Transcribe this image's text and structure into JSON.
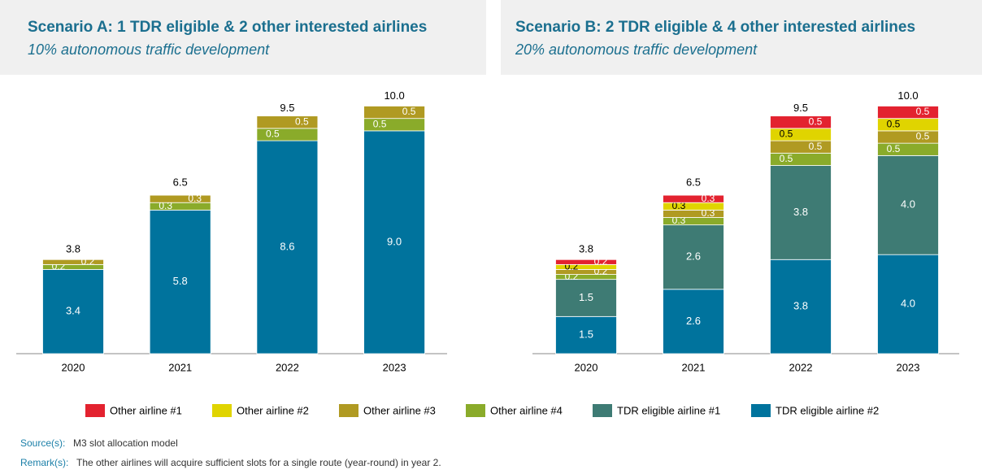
{
  "chart_data": [
    {
      "type": "bar",
      "stacked": true,
      "title": "Scenario A: 1 TDR eligible & 2 other interested airlines",
      "subtitle": "10% autonomous traffic development",
      "categories": [
        "2020",
        "2021",
        "2022",
        "2023"
      ],
      "ylim": [
        0,
        11
      ],
      "series": [
        {
          "name": "TDR eligible airline #2",
          "color": "#00739d",
          "values": [
            3.4,
            5.8,
            8.6,
            9.0
          ],
          "value_labels": [
            "3.4",
            "5.8",
            "8.6",
            "9.0"
          ]
        },
        {
          "name": "Other airline #4",
          "color": "#8aab2a",
          "values": [
            0.2,
            0.3,
            0.5,
            0.5
          ]
        },
        {
          "name": "Other airline #3",
          "color": "#b09a22",
          "values": [
            0.2,
            0.3,
            0.5,
            0.5
          ]
        }
      ],
      "totals": [
        3.8,
        6.5,
        9.5,
        10.0
      ],
      "total_labels": [
        "3.8",
        "6.5",
        "9.5",
        "10.0"
      ]
    },
    {
      "type": "bar",
      "stacked": true,
      "title": "Scenario B: 2 TDR eligible & 4 other interested airlines",
      "subtitle": "20% autonomous traffic development",
      "categories": [
        "2020",
        "2021",
        "2022",
        "2023"
      ],
      "ylim": [
        0,
        11
      ],
      "series": [
        {
          "name": "TDR eligible airline #2",
          "color": "#00739d",
          "values": [
            1.5,
            2.6,
            3.8,
            4.0
          ],
          "value_labels": [
            "1.5",
            "2.6",
            "3.8",
            "4.0"
          ]
        },
        {
          "name": "TDR eligible airline #1",
          "color": "#3e7b74",
          "values": [
            1.5,
            2.6,
            3.8,
            4.0
          ],
          "value_labels": [
            "1.5",
            "2.6",
            "3.8",
            "4.0"
          ]
        },
        {
          "name": "Other airline #4",
          "color": "#8aab2a",
          "values": [
            0.2,
            0.3,
            0.5,
            0.5
          ]
        },
        {
          "name": "Other airline #3",
          "color": "#b09a22",
          "values": [
            0.2,
            0.3,
            0.5,
            0.5
          ]
        },
        {
          "name": "Other airline #2",
          "color": "#e0d400",
          "values": [
            0.2,
            0.3,
            0.5,
            0.5
          ]
        },
        {
          "name": "Other airline #1",
          "color": "#e3222f",
          "values": [
            0.2,
            0.3,
            0.5,
            0.5
          ]
        }
      ],
      "totals": [
        3.8,
        6.5,
        9.5,
        10.0
      ],
      "total_labels": [
        "3.8",
        "6.5",
        "9.5",
        "10.0"
      ]
    }
  ],
  "footer": {
    "source_label": "Source(s):",
    "source_text": "M3 slot allocation model",
    "remark_label": "Remark(s):",
    "remark_text": "The other airlines will acquire sufficient slots for a single route (year-round) in year 2."
  }
}
